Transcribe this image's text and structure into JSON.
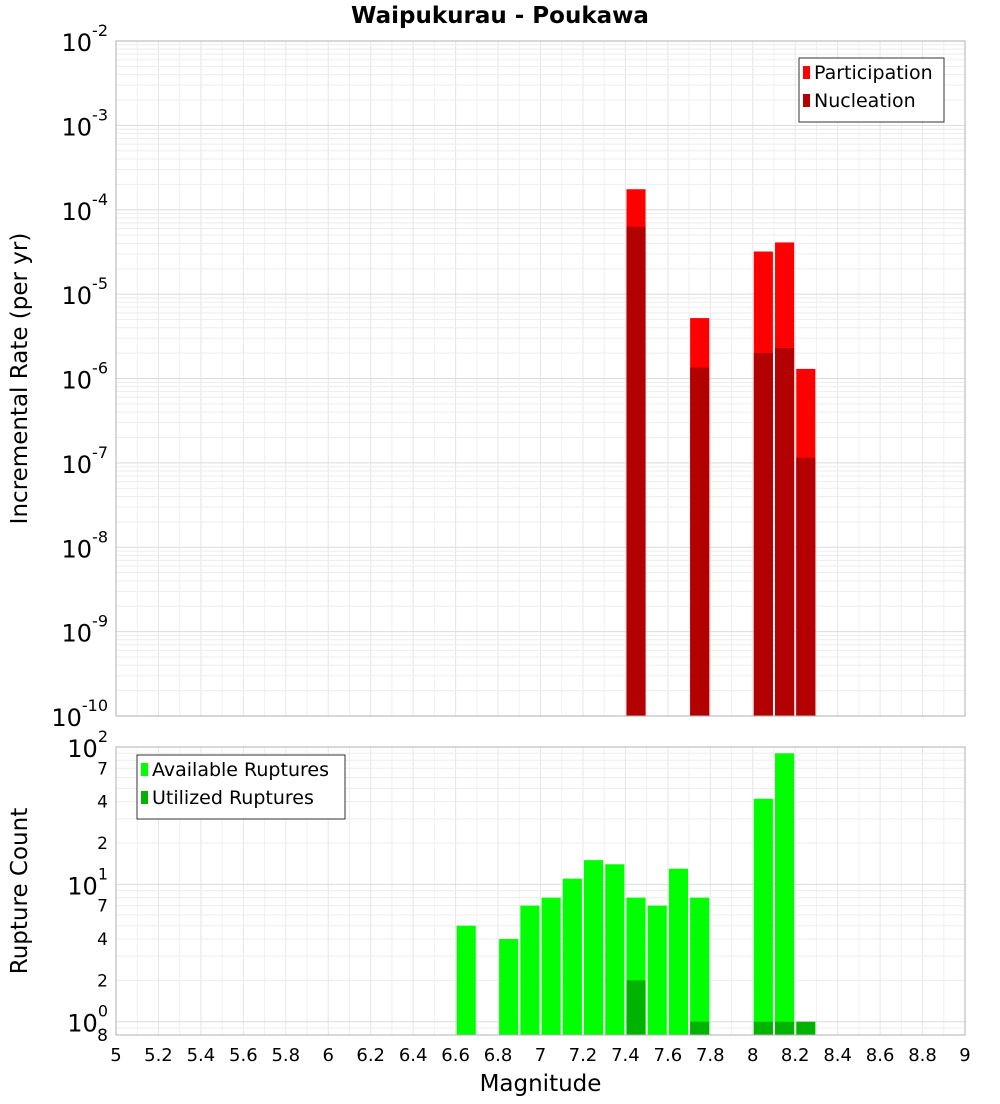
{
  "chart_data": [
    {
      "type": "bar",
      "title": "Waipukurau - Poukawa",
      "xlabel": "",
      "ylabel": "Incremental Rate (per yr)",
      "yscale": "log",
      "ylim": [
        1e-10,
        0.01
      ],
      "xlim": [
        5,
        9
      ],
      "grid": true,
      "legend_position": "top-right",
      "bar_width": 0.09,
      "x": [
        7.45,
        7.75,
        8.05,
        8.15,
        8.25
      ],
      "series": [
        {
          "name": "Participation",
          "color": "#ff0000",
          "values": [
            0.000175,
            5.2e-06,
            3.2e-05,
            4.1e-05,
            1.3e-06
          ]
        },
        {
          "name": "Nucleation",
          "color": "#b30000",
          "values": [
            6.3e-05,
            1.35e-06,
            2e-06,
            2.3e-06,
            1.15e-07
          ]
        }
      ],
      "y_ticks": [
        {
          "base": "10",
          "exp": "-2"
        },
        {
          "base": "10",
          "exp": "-3"
        },
        {
          "base": "10",
          "exp": "-4"
        },
        {
          "base": "10",
          "exp": "-5"
        },
        {
          "base": "10",
          "exp": "-6"
        },
        {
          "base": "10",
          "exp": "-7"
        },
        {
          "base": "10",
          "exp": "-8"
        },
        {
          "base": "10",
          "exp": "-9"
        },
        {
          "base": "10",
          "exp": "-10"
        }
      ]
    },
    {
      "type": "bar",
      "title": "",
      "xlabel": "Magnitude",
      "ylabel": "Rupture Count",
      "yscale": "log",
      "ylim": [
        0.8,
        100
      ],
      "xlim": [
        5,
        9
      ],
      "grid": true,
      "legend_position": "top-left",
      "bar_width": 0.09,
      "x": [
        6.65,
        6.85,
        6.95,
        7.05,
        7.15,
        7.25,
        7.35,
        7.45,
        7.55,
        7.65,
        7.75,
        8.05,
        8.15,
        8.25
      ],
      "series": [
        {
          "name": "Available Ruptures",
          "color": "#00ff00",
          "values": [
            5,
            4,
            7,
            8,
            11,
            15,
            14,
            8,
            7,
            13,
            8,
            42,
            90,
            0
          ]
        },
        {
          "name": "Utilized Ruptures",
          "color": "#00b300",
          "values": [
            0,
            0,
            0,
            0,
            0,
            0,
            0,
            2,
            0,
            0,
            1,
            1,
            1,
            1
          ]
        }
      ],
      "y_ticks": [
        {
          "base": "10",
          "exp": "2"
        },
        {
          "base": "7",
          "exp": ""
        },
        {
          "base": "4",
          "exp": ""
        },
        {
          "base": "2",
          "exp": ""
        },
        {
          "base": "10",
          "exp": "1"
        },
        {
          "base": "7",
          "exp": ""
        },
        {
          "base": "4",
          "exp": ""
        },
        {
          "base": "2",
          "exp": ""
        },
        {
          "base": "10",
          "exp": "0"
        },
        {
          "base": "8",
          "exp": ""
        }
      ],
      "x_ticks": [
        "5",
        "5.2",
        "5.4",
        "5.6",
        "5.8",
        "6",
        "6.2",
        "6.4",
        "6.6",
        "6.8",
        "7",
        "7.2",
        "7.4",
        "7.6",
        "7.8",
        "8",
        "8.2",
        "8.4",
        "8.6",
        "8.8",
        "9"
      ]
    }
  ]
}
